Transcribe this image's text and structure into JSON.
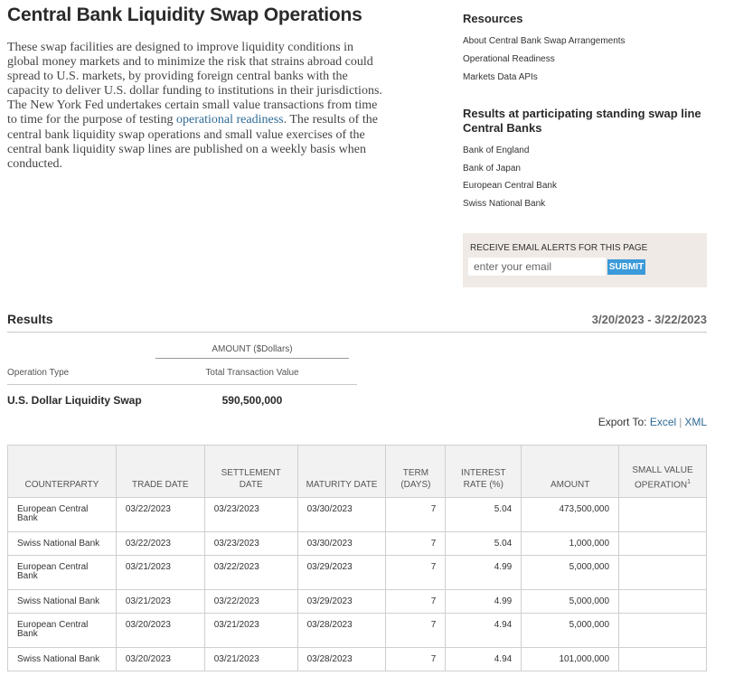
{
  "page": {
    "title": "Central Bank Liquidity Swap Operations",
    "intro": {
      "text_before": "These swap facilities are designed to improve liquidity conditions in global money markets and to minimize the risk that strains abroad could spread to U.S. markets, by providing foreign central banks with the capacity to deliver U.S. dollar funding to institutions in their jurisdictions. The New York Fed undertakes certain small value transactions from time to time for the purpose of testing ",
      "link": "operational readiness",
      "text_after": ". The results of the central bank liquidity swap operations and small value exercises of the central bank liquidity swap lines are published on a weekly basis when conducted."
    }
  },
  "sidebar": {
    "resources_title": "Resources",
    "resources": [
      "About Central Bank Swap Arrangements",
      "Operational Readiness",
      "Markets Data APIs"
    ],
    "results_title": "Results at participating standing swap line Central Banks",
    "banks": [
      "Bank of England",
      "Bank of Japan",
      "European Central Bank",
      "Swiss National Bank"
    ],
    "email": {
      "label": "RECEIVE EMAIL ALERTS FOR THIS PAGE",
      "placeholder": "enter your email",
      "submit": "SUBMIT"
    }
  },
  "results": {
    "heading": "Results",
    "date_range": "3/20/2023 - 3/22/2023",
    "amount_header": "AMOUNT ($Dollars)",
    "operation_type_label": "Operation Type",
    "total_value_label": "Total Transaction Value",
    "operation_name": "U.S. Dollar Liquidity Swap",
    "operation_value": "590,500,000",
    "export_label": "Export To:",
    "export_excel": "Excel",
    "export_separator": "|",
    "export_xml": "XML"
  },
  "table": {
    "headers": [
      "COUNTERPARTY",
      "TRADE DATE",
      "SETTLEMENT DATE",
      "MATURITY DATE",
      "TERM (DAYS)",
      "INTEREST RATE (%)",
      "AMOUNT",
      "SMALL VALUE OPERATION"
    ],
    "footnote_mark": "1",
    "rows": [
      [
        "European Central Bank",
        "03/22/2023",
        "03/23/2023",
        "03/30/2023",
        "7",
        "5.04",
        "473,500,000",
        ""
      ],
      [
        "Swiss National Bank",
        "03/22/2023",
        "03/23/2023",
        "03/30/2023",
        "7",
        "5.04",
        "1,000,000",
        ""
      ],
      [
        "European Central Bank",
        "03/21/2023",
        "03/22/2023",
        "03/29/2023",
        "7",
        "4.99",
        "5,000,000",
        ""
      ],
      [
        "Swiss National Bank",
        "03/21/2023",
        "03/22/2023",
        "03/29/2023",
        "7",
        "4.99",
        "5,000,000",
        ""
      ],
      [
        "European Central Bank",
        "03/20/2023",
        "03/21/2023",
        "03/28/2023",
        "7",
        "4.94",
        "5,000,000",
        ""
      ],
      [
        "Swiss National Bank",
        "03/20/2023",
        "03/21/2023",
        "03/28/2023",
        "7",
        "4.94",
        "101,000,000",
        ""
      ]
    ]
  },
  "colors": {
    "link": "#2e6a96",
    "submit": "#3b9ad9",
    "email_bg": "#efeae6",
    "table_header_bg": "#f2f2f2"
  }
}
